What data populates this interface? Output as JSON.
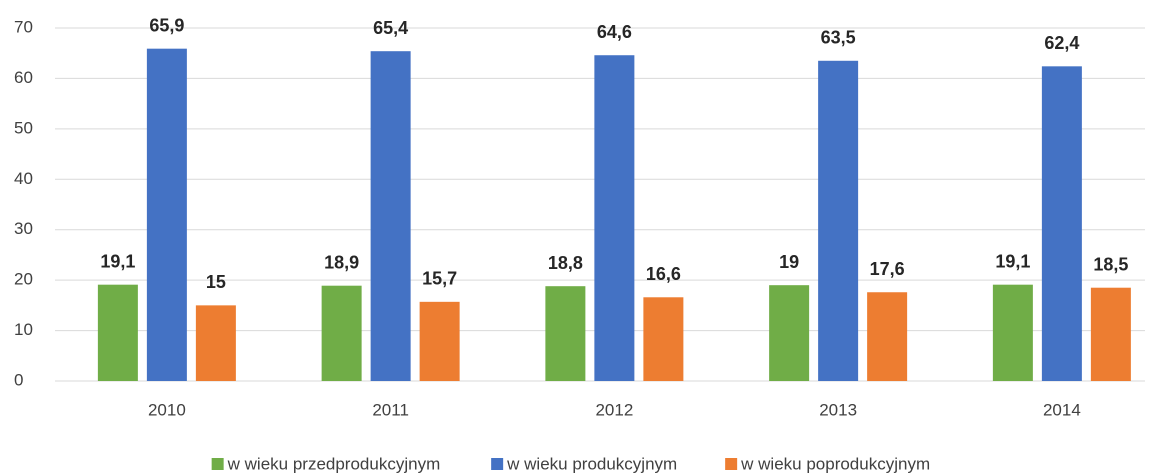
{
  "chart_data": {
    "type": "bar",
    "categories": [
      "2010",
      "2011",
      "2012",
      "2013",
      "2014"
    ],
    "series": [
      {
        "name": "w wieku przedprodukcyjnym",
        "color": "#70ad47",
        "values": [
          19.1,
          18.9,
          18.8,
          19,
          19.1
        ],
        "value_labels": [
          "19,1",
          "18,9",
          "18,8",
          "19",
          "19,1"
        ]
      },
      {
        "name": "w wieku produkcyjnym",
        "color": "#4472c4",
        "values": [
          65.9,
          65.4,
          64.6,
          63.5,
          62.4
        ],
        "value_labels": [
          "65,9",
          "65,4",
          "64,6",
          "63,5",
          "62,4"
        ]
      },
      {
        "name": "w wieku poprodukcyjnym",
        "color": "#ed7d31",
        "values": [
          15,
          15.7,
          16.6,
          17.6,
          18.5
        ],
        "value_labels": [
          "15",
          "15,7",
          "16,6",
          "17,6",
          "18,5"
        ]
      }
    ],
    "ylim": [
      0,
      70
    ],
    "yticks": [
      0,
      10,
      20,
      30,
      40,
      50,
      60,
      70
    ],
    "grid": true,
    "legend": "bottom"
  }
}
